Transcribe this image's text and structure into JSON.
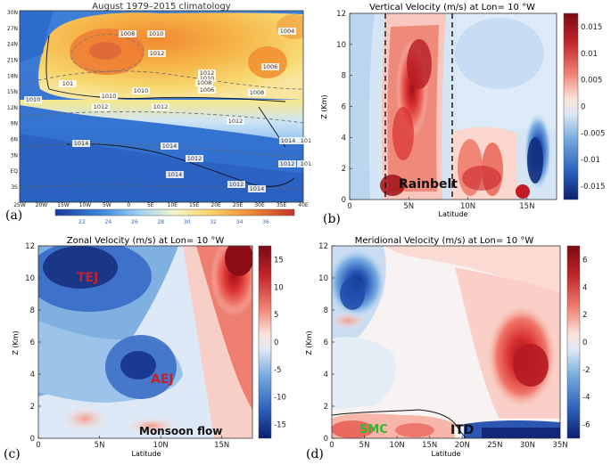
{
  "chart_data": [
    {
      "panel": "(a)",
      "type": "heatmap",
      "title": "August 1979–2015 climatology",
      "x_ticks": [
        "25W",
        "20W",
        "15W",
        "10W",
        "5W",
        "0",
        "5E",
        "10E",
        "15E",
        "20E",
        "25E",
        "30E",
        "35E",
        "40E"
      ],
      "y_ticks": [
        "30N",
        "27N",
        "24N",
        "21N",
        "18N",
        "15N",
        "12N",
        "9N",
        "6N",
        "3N",
        "EQ",
        "3S"
      ],
      "colorbar_ticks": [
        "22",
        "24",
        "26",
        "28",
        "30",
        "32",
        "34",
        "36"
      ],
      "contour_labels": [
        "1008",
        "1010",
        "1012",
        "1004",
        "1006",
        "1012",
        "1010",
        "1008",
        "1006",
        "1010",
        "1010",
        "1008",
        "1010",
        "1012",
        "1012",
        "1012",
        "1014",
        "1014",
        "1012",
        "1014",
        "1014",
        "1012",
        "1014",
        "1012",
        "101",
        "101",
        "101"
      ],
      "grid": false
    },
    {
      "panel": "(b)",
      "type": "heatmap",
      "title": "Vertical Velocity (m/s) at Lon= 10 °W",
      "xlabel": "Latitude",
      "ylabel": "Z (Km)",
      "xlim": [
        0,
        17.5
      ],
      "ylim": [
        0,
        12
      ],
      "x_ticks": [
        "0",
        "5N",
        "10N",
        "15N"
      ],
      "y_ticks": [
        "0",
        "2",
        "4",
        "6",
        "8",
        "10",
        "12"
      ],
      "colorbar_ticks": [
        "0.015",
        "0.01",
        "0.005",
        "0",
        "-0.005",
        "-0.01",
        "-0.015"
      ],
      "annotations": [
        "Rainbelt"
      ],
      "dashed_lines_x": [
        3.4,
        8.6
      ]
    },
    {
      "panel": "(c)",
      "type": "heatmap",
      "title": "Zonal Velocity (m/s) at Lon= 10 °W",
      "xlabel": "Latitude",
      "ylabel": "Z (Km)",
      "xlim": [
        0,
        17.5
      ],
      "ylim": [
        0,
        12
      ],
      "x_ticks": [
        "0",
        "5N",
        "10N",
        "15N"
      ],
      "y_ticks": [
        "0",
        "2",
        "4",
        "6",
        "8",
        "10",
        "12"
      ],
      "colorbar_ticks": [
        "15",
        "10",
        "5",
        "0",
        "-5",
        "-10",
        "-15"
      ],
      "annotations": [
        "TEJ",
        "AEJ",
        "Monsoon flow"
      ]
    },
    {
      "panel": "(d)",
      "type": "heatmap",
      "title": "Meridional Velocity (m/s) at Lon= 10 °W",
      "xlabel": "Latitude",
      "ylabel": "Z (Km)",
      "xlim": [
        0,
        35
      ],
      "ylim": [
        0,
        12
      ],
      "x_ticks": [
        "0",
        "5N",
        "10N",
        "15N",
        "20N",
        "25N",
        "30N",
        "35N"
      ],
      "y_ticks": [
        "0",
        "2",
        "4",
        "6",
        "8",
        "10",
        "12"
      ],
      "colorbar_ticks": [
        "6",
        "4",
        "2",
        "0",
        "-2",
        "-4",
        "-6"
      ],
      "annotations": [
        "SMC",
        "ITD"
      ]
    }
  ],
  "panel_labels": [
    "(a)",
    "(b)",
    "(c)",
    "(d)"
  ]
}
